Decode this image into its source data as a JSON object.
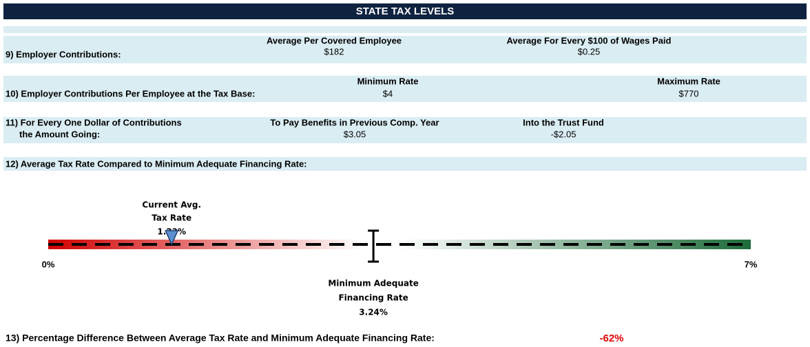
{
  "header": {
    "title": "STATE TAX LEVELS"
  },
  "rows": [
    {
      "label": "9) Employer Contributions:",
      "columns": [
        {
          "heading": "Average Per Covered Employee",
          "value": "$182"
        },
        {
          "heading": "Average For Every $100 of Wages Paid",
          "value": "$0.25"
        }
      ]
    },
    {
      "label": "10) Employer Contributions Per Employee at the Tax Base:",
      "columns": [
        {
          "heading": "Minimum Rate",
          "value": "$4"
        },
        {
          "heading": "Maximum Rate",
          "value": "$770"
        }
      ]
    },
    {
      "label": "11) For Every One Dollar of Contributions",
      "label_continued": "the Amount Going:",
      "columns": [
        {
          "heading": "To Pay Benefits in Previous Comp. Year",
          "value": "$3.05"
        },
        {
          "heading": "Into the Trust Fund",
          "value": "-$2.05"
        }
      ]
    }
  ],
  "gauge": {
    "label": "12) Average Tax Rate Compared to Minimum Adequate Financing Rate:",
    "scale_start": {
      "value": 0,
      "label": "0%"
    },
    "scale_end": {
      "value": 7,
      "label": "7%"
    },
    "current": {
      "title_lines": [
        "Current Avg.",
        "Tax Rate"
      ],
      "value": 1.23,
      "label": "1.23%"
    },
    "minimum": {
      "title_lines": [
        "Minimum  Adequate",
        "Financing Rate"
      ],
      "value": 3.24,
      "label": "3.24%"
    }
  },
  "difference": {
    "label": "13) Percentage Difference Between Average Tax Rate and Minimum Adequate Financing Rate:",
    "value": "-62%"
  }
}
